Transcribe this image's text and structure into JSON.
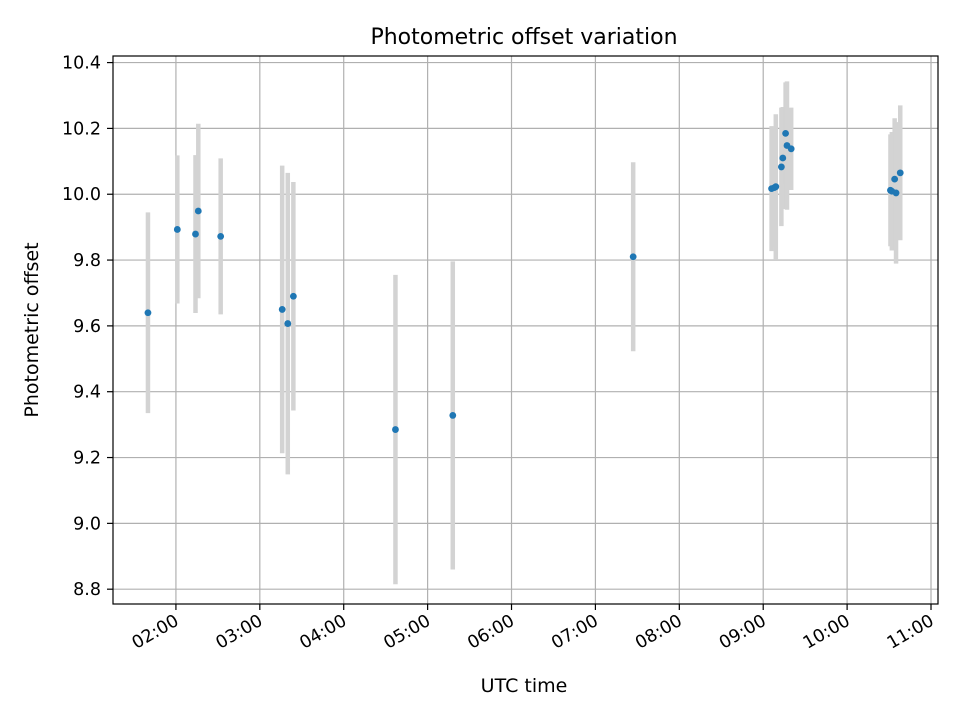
{
  "chart_data": {
    "type": "scatter",
    "title": "Photometric offset variation",
    "xlabel": "UTC time",
    "ylabel": "Photometric offset",
    "grid": true,
    "legend": "none",
    "xlim": [
      "01:15",
      "11:05"
    ],
    "ylim": [
      8.755,
      10.42
    ],
    "x_ticks": [
      "02:00",
      "03:00",
      "04:00",
      "05:00",
      "06:00",
      "07:00",
      "08:00",
      "09:00",
      "10:00",
      "11:00"
    ],
    "y_ticks": [
      "8.8",
      "9.0",
      "9.2",
      "9.4",
      "9.6",
      "9.8",
      "10.0",
      "10.2",
      "10.4"
    ],
    "marker_color": "#1f77b4",
    "errorbar_color": "#d3d3d3",
    "series": [
      {
        "points": [
          {
            "x": "01:40",
            "y": 9.64,
            "err": 0.305
          },
          {
            "x": "02:01",
            "y": 9.893,
            "err": 0.225
          },
          {
            "x": "02:14",
            "y": 9.879,
            "err": 0.24
          },
          {
            "x": "02:16",
            "y": 9.949,
            "err": 0.265
          },
          {
            "x": "02:32",
            "y": 9.872,
            "err": 0.237
          },
          {
            "x": "03:16",
            "y": 9.65,
            "err": 0.437
          },
          {
            "x": "03:20",
            "y": 9.607,
            "err": 0.458
          },
          {
            "x": "03:24",
            "y": 9.69,
            "err": 0.347
          },
          {
            "x": "04:37",
            "y": 9.285,
            "err": 0.47
          },
          {
            "x": "05:18",
            "y": 9.328,
            "err": 0.468
          },
          {
            "x": "07:27",
            "y": 9.81,
            "err": 0.287
          },
          {
            "x": "09:06",
            "y": 10.017,
            "err": 0.19
          },
          {
            "x": "09:08",
            "y": 10.02,
            "err": 0.18
          },
          {
            "x": "09:09",
            "y": 10.023,
            "err": 0.22
          },
          {
            "x": "09:13",
            "y": 10.083,
            "err": 0.18
          },
          {
            "x": "09:14",
            "y": 10.11,
            "err": 0.155
          },
          {
            "x": "09:16",
            "y": 10.185,
            "err": 0.155
          },
          {
            "x": "09:17",
            "y": 10.148,
            "err": 0.195
          },
          {
            "x": "09:20",
            "y": 10.138,
            "err": 0.125
          },
          {
            "x": "10:31",
            "y": 10.012,
            "err": 0.17
          },
          {
            "x": "10:32",
            "y": 10.009,
            "err": 0.18
          },
          {
            "x": "10:34",
            "y": 10.046,
            "err": 0.185
          },
          {
            "x": "10:35",
            "y": 10.004,
            "err": 0.215
          },
          {
            "x": "10:38",
            "y": 10.065,
            "err": 0.205
          }
        ]
      }
    ]
  }
}
